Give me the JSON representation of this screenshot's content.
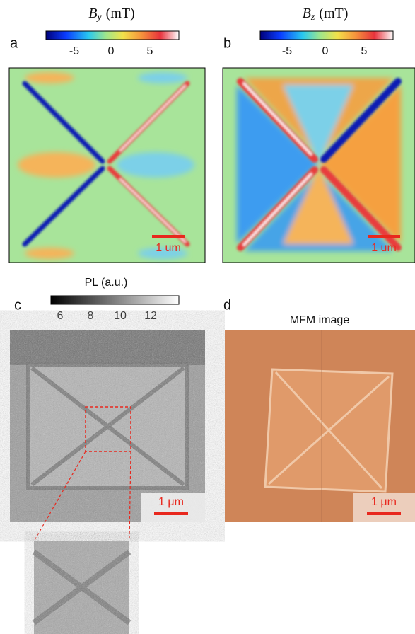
{
  "panels": [
    {
      "label": "a",
      "colorbar": {
        "symbol": "B",
        "subscript": "y",
        "unit": "(mT)",
        "ticks": [
          "-5",
          "0",
          "5"
        ]
      },
      "scale_bar": "1 um"
    },
    {
      "label": "b",
      "colorbar": {
        "symbol": "B",
        "subscript": "z",
        "unit": "(mT)",
        "ticks": [
          "-5",
          "0",
          "5"
        ]
      },
      "scale_bar": "1 um"
    },
    {
      "label": "c",
      "colorbar": {
        "title": "PL (a.u.)",
        "ticks": [
          "6",
          "8",
          "10",
          "12"
        ]
      },
      "scale_bar": "1 μm"
    },
    {
      "label": "d",
      "title": "MFM image",
      "scale_bar": "1 μm"
    }
  ]
}
